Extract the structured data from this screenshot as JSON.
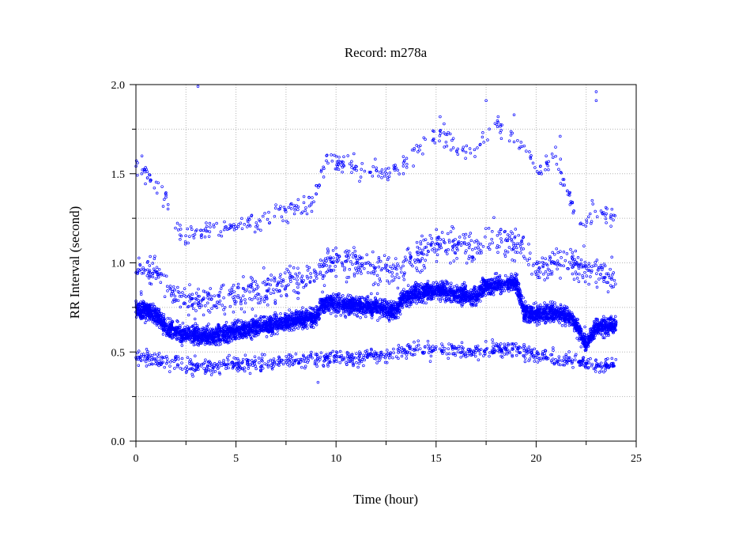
{
  "chart_data": {
    "type": "scatter",
    "title": "Record:  m278a",
    "xlabel": "Time (hour)",
    "ylabel": "RR Interval (second)",
    "xlim": [
      0,
      25
    ],
    "ylim": [
      0,
      2.0
    ],
    "x_ticks": [
      0,
      5,
      10,
      15,
      20,
      25
    ],
    "x_tick_labels": [
      "0",
      "5",
      "10",
      "15",
      "20",
      "25"
    ],
    "y_ticks": [
      0,
      0.5,
      1.0,
      1.5,
      2.0
    ],
    "y_tick_labels": [
      "0.0",
      "0.5",
      "1.0",
      "1.5",
      "2.0"
    ],
    "grid": true,
    "marker_color": "#0000ff",
    "series": [
      {
        "band_trend": [
          [
            0.0,
            0.74
          ],
          [
            0.5,
            0.73
          ],
          [
            1.0,
            0.71
          ],
          [
            1.5,
            0.64
          ],
          [
            2.0,
            0.61
          ],
          [
            3.0,
            0.59
          ],
          [
            4.0,
            0.59
          ],
          [
            5.0,
            0.62
          ],
          [
            6.0,
            0.64
          ],
          [
            7.0,
            0.66
          ],
          [
            8.0,
            0.68
          ],
          [
            9.0,
            0.7
          ],
          [
            9.3,
            0.77
          ],
          [
            10.0,
            0.77
          ],
          [
            11.0,
            0.76
          ],
          [
            12.0,
            0.75
          ],
          [
            13.0,
            0.73
          ],
          [
            13.3,
            0.8
          ],
          [
            14.0,
            0.83
          ],
          [
            15.0,
            0.85
          ],
          [
            16.0,
            0.83
          ],
          [
            17.0,
            0.81
          ],
          [
            17.4,
            0.87
          ],
          [
            18.0,
            0.88
          ],
          [
            19.0,
            0.89
          ],
          [
            19.4,
            0.72
          ],
          [
            20.0,
            0.71
          ],
          [
            21.0,
            0.72
          ],
          [
            21.7,
            0.7
          ],
          [
            22.5,
            0.55
          ],
          [
            23.0,
            0.64
          ],
          [
            24.0,
            0.65
          ]
        ],
        "upper_cluster": [
          [
            0.2,
            1.55
          ],
          [
            0.5,
            1.5
          ],
          [
            0.9,
            1.45
          ],
          [
            1.3,
            1.38
          ],
          [
            2.3,
            1.15
          ],
          [
            3.0,
            1.17
          ],
          [
            4.0,
            1.19
          ],
          [
            5.0,
            1.21
          ],
          [
            6.0,
            1.24
          ],
          [
            7.0,
            1.28
          ],
          [
            8.0,
            1.31
          ],
          [
            8.8,
            1.33
          ],
          [
            9.5,
            1.57
          ],
          [
            10.5,
            1.55
          ],
          [
            11.5,
            1.51
          ],
          [
            12.5,
            1.48
          ],
          [
            13.2,
            1.55
          ],
          [
            14.0,
            1.62
          ],
          [
            15.0,
            1.72
          ],
          [
            16.0,
            1.65
          ],
          [
            17.0,
            1.62
          ],
          [
            18.0,
            1.78
          ],
          [
            19.0,
            1.7
          ],
          [
            20.0,
            1.52
          ],
          [
            21.0,
            1.6
          ],
          [
            22.2,
            1.2
          ],
          [
            23.0,
            1.3
          ],
          [
            23.8,
            1.25
          ]
        ],
        "outliers": [
          [
            3.1,
            1.99
          ],
          [
            17.5,
            1.91
          ],
          [
            18.1,
            1.82
          ],
          [
            18.9,
            1.83
          ],
          [
            15.2,
            1.82
          ],
          [
            15.4,
            1.78
          ],
          [
            23.0,
            1.96
          ],
          [
            23.0,
            1.91
          ],
          [
            20.5,
            1.6
          ],
          [
            0.3,
            1.6
          ],
          [
            21.2,
            1.71
          ],
          [
            22.8,
            1.35
          ],
          [
            9.1,
            0.33
          ],
          [
            21.6,
            0.45
          ]
        ],
        "lower_band": [
          [
            0.3,
            0.47
          ],
          [
            1.0,
            0.46
          ],
          [
            2.0,
            0.44
          ],
          [
            3.0,
            0.42
          ],
          [
            4.0,
            0.42
          ],
          [
            5.0,
            0.43
          ],
          [
            6.0,
            0.44
          ],
          [
            7.0,
            0.44
          ],
          [
            8.0,
            0.45
          ],
          [
            9.0,
            0.46
          ],
          [
            10.0,
            0.47
          ],
          [
            11.0,
            0.47
          ],
          [
            12.0,
            0.48
          ],
          [
            13.0,
            0.49
          ],
          [
            14.0,
            0.51
          ],
          [
            15.0,
            0.52
          ],
          [
            16.0,
            0.51
          ],
          [
            17.0,
            0.5
          ],
          [
            18.0,
            0.52
          ],
          [
            19.0,
            0.52
          ],
          [
            20.0,
            0.48
          ],
          [
            21.0,
            0.47
          ],
          [
            22.0,
            0.45
          ],
          [
            23.0,
            0.42
          ],
          [
            24.0,
            0.44
          ]
        ],
        "upper_scatter_band": [
          [
            0.3,
            0.95
          ],
          [
            1.0,
            0.97
          ],
          [
            2.0,
            0.82
          ],
          [
            3.0,
            0.78
          ],
          [
            4.0,
            0.8
          ],
          [
            5.0,
            0.82
          ],
          [
            6.0,
            0.84
          ],
          [
            7.0,
            0.86
          ],
          [
            8.0,
            0.9
          ],
          [
            9.0,
            0.93
          ],
          [
            10.0,
            1.02
          ],
          [
            11.0,
            1.0
          ],
          [
            12.0,
            0.97
          ],
          [
            13.0,
            0.95
          ],
          [
            14.0,
            1.02
          ],
          [
            15.0,
            1.12
          ],
          [
            16.0,
            1.1
          ],
          [
            17.0,
            1.08
          ],
          [
            18.0,
            1.15
          ],
          [
            19.0,
            1.1
          ],
          [
            20.0,
            0.98
          ],
          [
            21.0,
            1.0
          ],
          [
            22.0,
            1.0
          ],
          [
            23.0,
            0.95
          ],
          [
            24.0,
            0.92
          ]
        ]
      }
    ]
  }
}
